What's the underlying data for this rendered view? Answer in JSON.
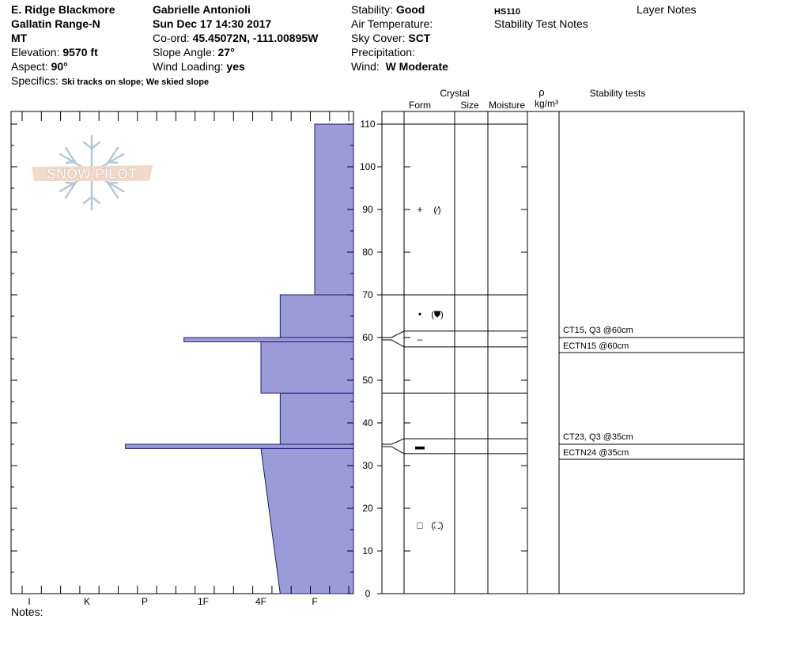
{
  "header": {
    "observer": "E. Ridge Blackmore",
    "location": "Gallatin Range-N",
    "state": "MT",
    "elevation_label": "Elevation:",
    "elevation": "9570 ft",
    "aspect_label": "Aspect:",
    "aspect": "90°",
    "specifics_label": "Specifics:",
    "specifics": "Ski tracks on slope; We skied slope",
    "name": "Gabrielle Antonioli",
    "datetime": "Sun Dec 17 14:30 2017",
    "coord_label": "Co-ord:",
    "coord": "45.45072N, -111.00895W",
    "slope_label": "Slope Angle:",
    "slope": "27°",
    "wind_loading_label": "Wind Loading:",
    "wind_loading": "yes",
    "stability_label": "Stability:",
    "stability": "Good",
    "air_temp_label": "Air Temperature:",
    "sky_label": "Sky Cover:",
    "sky": "SCT",
    "precip_label": "Precipitation:",
    "wind_label": "Wind:",
    "wind": "W Moderate",
    "hs": "HS110",
    "stability_notes_label": "Stability Test Notes",
    "layer_notes_label": "Layer Notes"
  },
  "logo_text": "SNOW PILOT",
  "notes_label": "Notes:",
  "columns": {
    "crystal": "Crystal",
    "form": "Form",
    "size": "Size",
    "moisture": "Moisture",
    "rho": "ρ",
    "density_unit": "kg/m³",
    "stability_tests": "Stability tests"
  },
  "chart_data": {
    "type": "bar",
    "orientation": "horizontal-step",
    "y_axis": {
      "range": [
        0,
        110
      ],
      "ticks": [
        0,
        10,
        20,
        30,
        40,
        50,
        60,
        70,
        80,
        90,
        100,
        110
      ],
      "unit": "cm"
    },
    "x_axis": {
      "categories": [
        "I",
        "K",
        "P",
        "1F",
        "4F",
        "F"
      ],
      "reversed": true
    },
    "fill_color": "#9b9bd7",
    "stroke_color": "#1c1c73",
    "hardness_profile": [
      {
        "bottom": 0,
        "top": 34,
        "hardness_bottom": "4F-",
        "hardness_top": "4F"
      },
      {
        "bottom": 34,
        "top": 35,
        "hardness": "P+"
      },
      {
        "bottom": 35,
        "top": 47,
        "hardness": "4F-"
      },
      {
        "bottom": 47,
        "top": 59,
        "hardness": "4F"
      },
      {
        "bottom": 59,
        "top": 60,
        "hardness": "1F+"
      },
      {
        "bottom": 60,
        "top": 70,
        "hardness": "4F-"
      },
      {
        "bottom": 70,
        "top": 110,
        "hardness": "F"
      }
    ],
    "layer_boundaries": [
      110,
      70,
      61.5,
      57.8,
      47,
      36.3,
      32.8
    ],
    "layers": [
      {
        "top": 110,
        "bottom": 70,
        "grain": "+",
        "grain_secondary": "(⁄)"
      },
      {
        "top": 70,
        "bottom": 61.5,
        "grain": "•",
        "grain_secondary": "(⛊)"
      },
      {
        "top": 61.5,
        "bottom": 57.8,
        "grain": "–",
        "grain_secondary": ""
      },
      {
        "top": 36.3,
        "bottom": 32.8,
        "grain": "▬",
        "grain_secondary": ""
      },
      {
        "top": 32.8,
        "bottom": 0,
        "grain": "□",
        "grain_secondary": "(⛶)"
      }
    ],
    "stability_tests": [
      {
        "depth": 60,
        "lines": [
          "CT15, Q3 @60cm",
          "ECTN15 @60cm"
        ]
      },
      {
        "depth": 35,
        "lines": [
          "CT23, Q3 @35cm",
          "ECTN24 @35cm"
        ]
      }
    ]
  }
}
